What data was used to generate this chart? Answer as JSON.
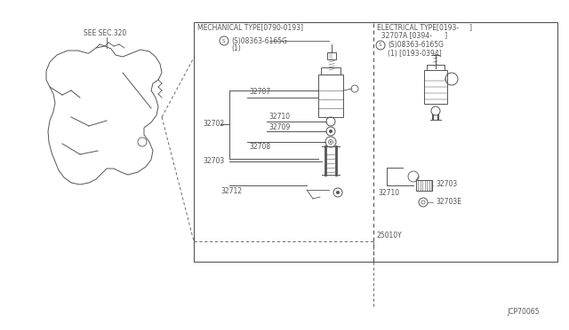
{
  "bg_color": "#ffffff",
  "border_color": "#555555",
  "line_color": "#555555",
  "fig_width": 6.4,
  "fig_height": 3.72,
  "dpi": 100,
  "see_sec_label": "SEE SEC.320",
  "mech_header": "MECHANICAL TYPE[0790-0193]",
  "elec_header": "ELECTRICAL TYPE[0193-     ]",
  "elec_line2": "  32707A [0394-      ]",
  "elec_screw": "(S)08363-6165G",
  "elec_screw2": "(1) [0193-0394]",
  "mech_screw": "(S)08363-6165G",
  "mech_screw2": "(1)",
  "diagram_code": "JCP70065"
}
